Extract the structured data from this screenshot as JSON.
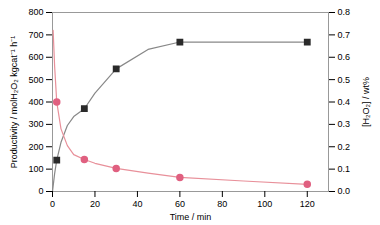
{
  "chart_data": {
    "type": "line",
    "xlabel": "Time / min",
    "ylabel": "Productivity / molH₂O₂ kgcat⁻¹ h⁻¹",
    "y2label": "[H₂O₂] / wt%",
    "xlim": [
      0,
      130
    ],
    "xticks": [
      0,
      20,
      40,
      60,
      80,
      100,
      120
    ],
    "ylim": [
      0,
      800
    ],
    "yticks": [
      0,
      100,
      200,
      300,
      400,
      500,
      600,
      700,
      800
    ],
    "y2lim": [
      0,
      0.8
    ],
    "y2ticks": [
      {
        "value": 0,
        "label": "0.0"
      },
      0.1,
      0.2,
      0.3,
      0.4,
      0.5,
      0.6,
      0.7,
      0.8
    ],
    "series": [
      {
        "type": "line",
        "color": "#888888",
        "axis": "y",
        "x": [
          0,
          1,
          2,
          4,
          7,
          10,
          15,
          20,
          30,
          45,
          60,
          90,
          120
        ],
        "values": [
          0,
          80,
          140,
          220,
          295,
          335,
          370,
          440,
          548,
          635,
          668,
          668,
          668
        ]
      },
      {
        "type": "scatter",
        "marker": "square",
        "color": "#2a2a2a",
        "axis": "y",
        "x": [
          2,
          15,
          30,
          60,
          120
        ],
        "values": [
          140,
          370,
          548,
          668,
          668
        ]
      },
      {
        "type": "line",
        "color": "#e8909a",
        "axis": "y2",
        "x": [
          0.3,
          1,
          2,
          4,
          7,
          10,
          15,
          20,
          30,
          45,
          60,
          90,
          120
        ],
        "values": [
          0.72,
          0.56,
          0.4,
          0.28,
          0.205,
          0.165,
          0.143,
          0.126,
          0.103,
          0.082,
          0.063,
          0.047,
          0.032
        ]
      },
      {
        "type": "scatter",
        "marker": "circle",
        "color": "#e06080",
        "axis": "y2",
        "x": [
          2,
          15,
          30,
          60,
          120
        ],
        "values": [
          0.4,
          0.143,
          0.103,
          0.063,
          0.032
        ]
      }
    ]
  }
}
